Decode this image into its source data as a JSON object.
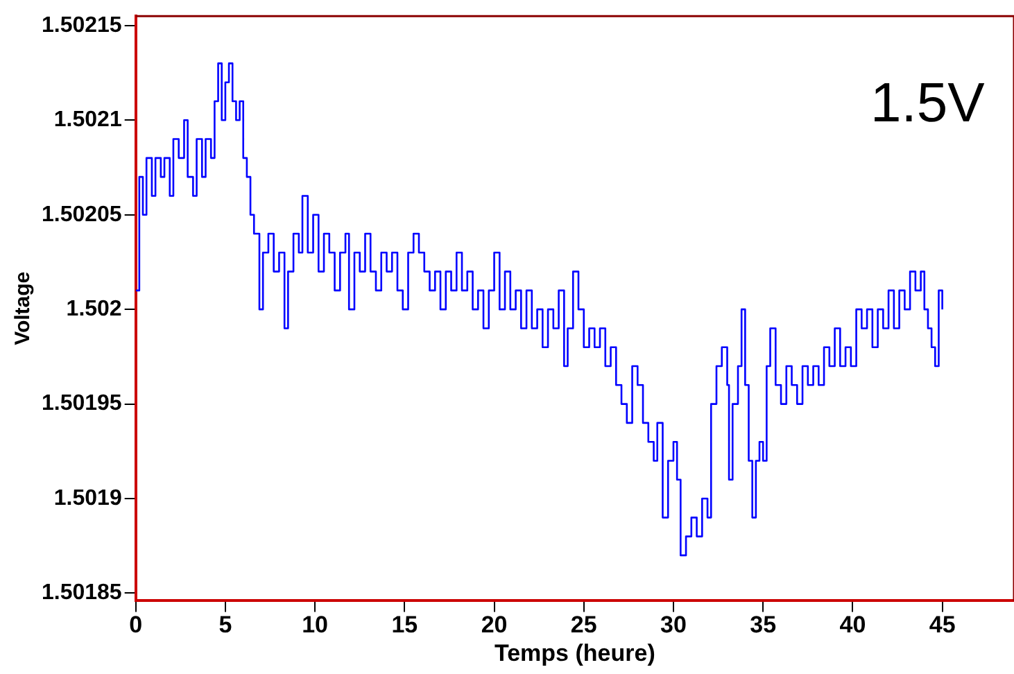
{
  "chart_data": {
    "type": "step",
    "xlabel": "Temps (heure)",
    "ylabel": "Voltage",
    "annotations": [
      "1.5V"
    ],
    "xlim": [
      0,
      49
    ],
    "xticks": [
      0,
      5,
      10,
      15,
      20,
      25,
      30,
      35,
      40,
      45
    ],
    "ylim": [
      1.501846,
      1.502155
    ],
    "yticks": [
      1.50185,
      1.5019,
      1.50195,
      1.502,
      1.50205,
      1.5021,
      1.50215
    ],
    "grid": false,
    "legend": false,
    "marker": "none",
    "line_style": "solid",
    "series": [
      {
        "color": "#0000ff",
        "x": [
          0,
          0.2,
          0.4,
          0.6,
          0.9,
          1.1,
          1.4,
          1.6,
          1.9,
          2.1,
          2.4,
          2.7,
          2.9,
          3.2,
          3.4,
          3.7,
          3.9,
          4.2,
          4.4,
          4.6,
          4.8,
          5.0,
          5.2,
          5.4,
          5.6,
          5.8,
          6.0,
          6.2,
          6.4,
          6.6,
          6.9,
          7.1,
          7.4,
          7.7,
          8.0,
          8.3,
          8.5,
          8.8,
          9.1,
          9.3,
          9.6,
          9.9,
          10.2,
          10.5,
          10.8,
          11.1,
          11.4,
          11.7,
          11.9,
          12.2,
          12.5,
          12.8,
          13.1,
          13.4,
          13.7,
          14.0,
          14.3,
          14.6,
          14.9,
          15.2,
          15.5,
          15.8,
          16.1,
          16.4,
          16.7,
          17.0,
          17.3,
          17.6,
          17.9,
          18.2,
          18.5,
          18.8,
          19.1,
          19.4,
          19.7,
          20.0,
          20.3,
          20.6,
          20.9,
          21.2,
          21.5,
          21.8,
          22.1,
          22.4,
          22.7,
          23.0,
          23.3,
          23.6,
          23.9,
          24.1,
          24.4,
          24.7,
          25.0,
          25.3,
          25.6,
          25.9,
          26.2,
          26.5,
          26.8,
          27.1,
          27.4,
          27.7,
          28.0,
          28.3,
          28.6,
          28.9,
          29.1,
          29.4,
          29.7,
          30.0,
          30.2,
          30.4,
          30.7,
          31.0,
          31.3,
          31.6,
          31.9,
          32.1,
          32.4,
          32.7,
          33.0,
          33.1,
          33.3,
          33.6,
          33.8,
          34.0,
          34.2,
          34.4,
          34.6,
          34.8,
          35.0,
          35.2,
          35.4,
          35.7,
          36.0,
          36.3,
          36.6,
          36.9,
          37.2,
          37.5,
          37.8,
          38.1,
          38.4,
          38.7,
          39.0,
          39.3,
          39.6,
          39.9,
          40.2,
          40.5,
          40.8,
          41.1,
          41.4,
          41.7,
          42.0,
          42.3,
          42.6,
          42.9,
          43.2,
          43.5,
          43.8,
          44.0,
          44.2,
          44.4,
          44.6,
          44.8,
          45.0
        ],
        "values": [
          1.50201,
          1.50207,
          1.50205,
          1.50208,
          1.50206,
          1.50208,
          1.50207,
          1.50208,
          1.50206,
          1.50209,
          1.50208,
          1.5021,
          1.50207,
          1.50206,
          1.50209,
          1.50207,
          1.50209,
          1.50208,
          1.50211,
          1.50213,
          1.5021,
          1.50212,
          1.50213,
          1.50211,
          1.5021,
          1.50211,
          1.50208,
          1.50207,
          1.50205,
          1.50204,
          1.502,
          1.50203,
          1.50204,
          1.50202,
          1.50203,
          1.50199,
          1.50202,
          1.50204,
          1.50203,
          1.50206,
          1.50203,
          1.50205,
          1.50202,
          1.50204,
          1.50203,
          1.50201,
          1.50203,
          1.50204,
          1.502,
          1.50203,
          1.50202,
          1.50204,
          1.50202,
          1.50201,
          1.50203,
          1.50202,
          1.50203,
          1.50201,
          1.502,
          1.50203,
          1.50204,
          1.50203,
          1.50202,
          1.50201,
          1.50202,
          1.502,
          1.50202,
          1.50201,
          1.50203,
          1.50201,
          1.50202,
          1.502,
          1.50201,
          1.50199,
          1.50201,
          1.50203,
          1.502,
          1.50202,
          1.502,
          1.50201,
          1.50199,
          1.50201,
          1.50199,
          1.502,
          1.50198,
          1.502,
          1.50199,
          1.50201,
          1.50197,
          1.50199,
          1.50202,
          1.502,
          1.50198,
          1.50199,
          1.50198,
          1.50199,
          1.50197,
          1.50198,
          1.50196,
          1.50195,
          1.50194,
          1.50197,
          1.50196,
          1.50194,
          1.50193,
          1.50192,
          1.50194,
          1.50189,
          1.50192,
          1.50193,
          1.50191,
          1.50187,
          1.50188,
          1.50189,
          1.50188,
          1.5019,
          1.50189,
          1.50195,
          1.50197,
          1.50198,
          1.50196,
          1.50191,
          1.50195,
          1.50197,
          1.502,
          1.50196,
          1.50192,
          1.50189,
          1.50192,
          1.50193,
          1.50192,
          1.50197,
          1.50199,
          1.50196,
          1.50195,
          1.50197,
          1.50196,
          1.50195,
          1.50197,
          1.50196,
          1.50197,
          1.50196,
          1.50198,
          1.50197,
          1.50199,
          1.50197,
          1.50198,
          1.50197,
          1.502,
          1.50199,
          1.502,
          1.50198,
          1.502,
          1.50199,
          1.50201,
          1.50199,
          1.50201,
          1.502,
          1.50202,
          1.50201,
          1.50202,
          1.502,
          1.50199,
          1.50198,
          1.50197,
          1.50201,
          1.502
        ]
      }
    ]
  }
}
